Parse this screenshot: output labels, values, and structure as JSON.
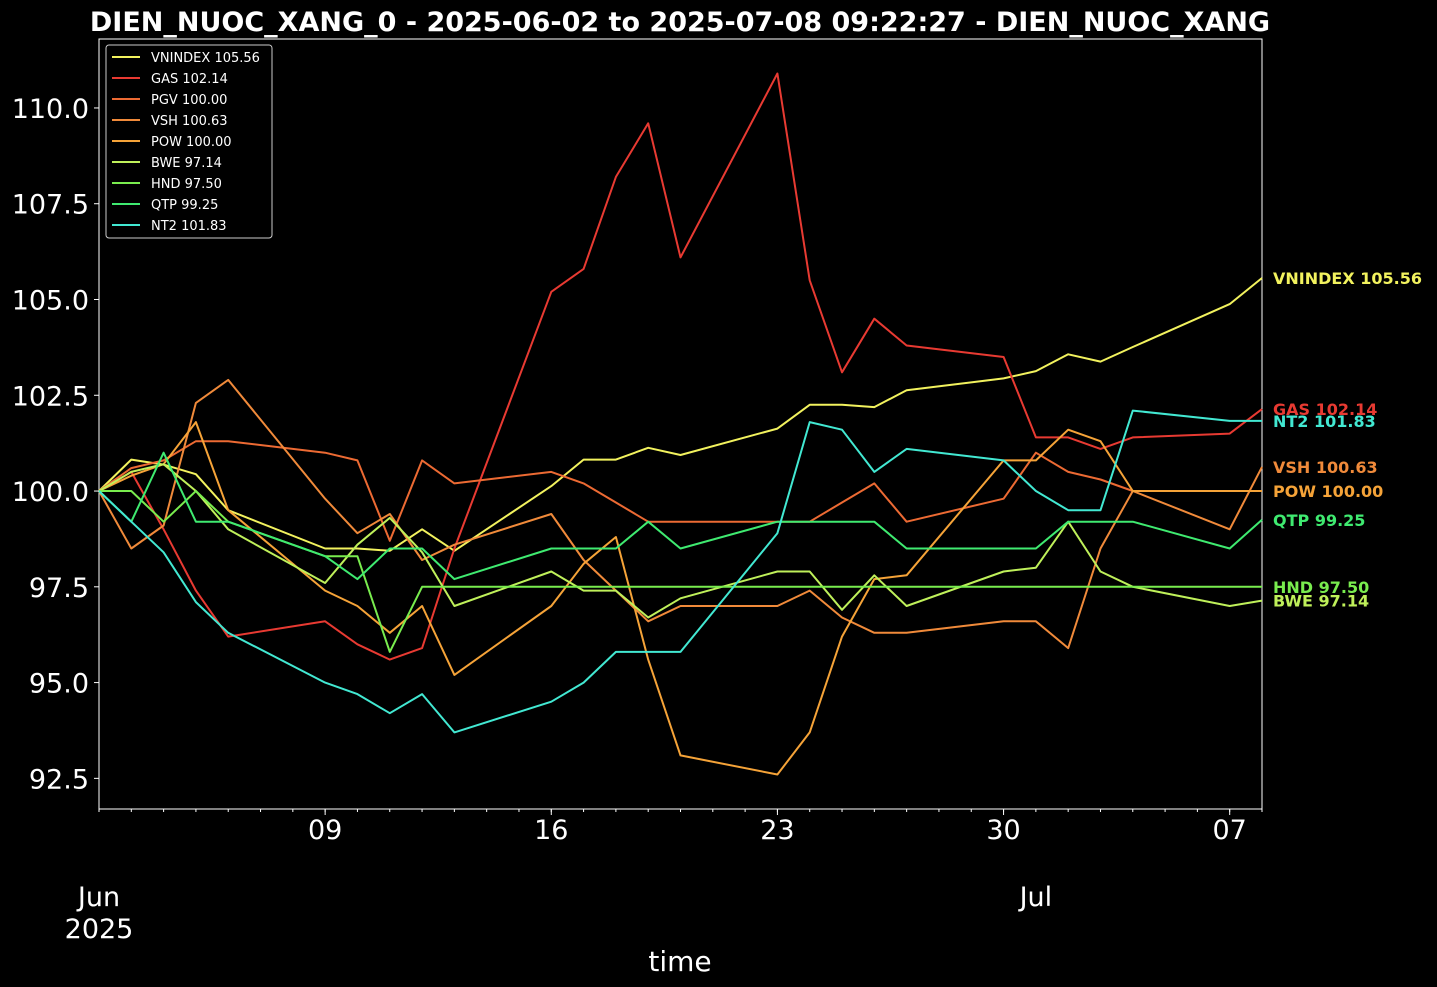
{
  "chart_data": {
    "type": "line",
    "title": "DIEN_NUOC_XANG_0 - 2025-06-02 to 2025-07-08 09:22:27 - DIEN_NUOC_XANG",
    "xlabel": "time",
    "ylabel": "",
    "x_tick_labels": [
      {
        "date": "2025-06-09",
        "label": "09"
      },
      {
        "date": "2025-06-16",
        "label": "16"
      },
      {
        "date": "2025-06-23",
        "label": "23"
      },
      {
        "date": "2025-06-30",
        "label": "30"
      },
      {
        "date": "2025-07-07",
        "label": "07"
      }
    ],
    "x_major_labels": [
      {
        "date": "2025-06-02",
        "line1": "Jun",
        "line2": "2025"
      },
      {
        "date": "2025-07-01",
        "line1": "Jul",
        "line2": ""
      }
    ],
    "y_ticks": [
      92.5,
      95.0,
      97.5,
      100.0,
      102.5,
      105.0,
      107.5,
      110.0
    ],
    "y_tick_labels": [
      "92.5",
      "95.0",
      "97.5",
      "100.0",
      "102.5",
      "105.0",
      "107.5",
      "110.0"
    ],
    "xlim": [
      "2025-06-02",
      "2025-07-08"
    ],
    "ylim": [
      91.7,
      111.8
    ],
    "grid": false,
    "legend_position": "top-left",
    "background": "#000000",
    "x": [
      "2025-06-02",
      "2025-06-03",
      "2025-06-04",
      "2025-06-05",
      "2025-06-06",
      "2025-06-09",
      "2025-06-10",
      "2025-06-11",
      "2025-06-12",
      "2025-06-13",
      "2025-06-16",
      "2025-06-17",
      "2025-06-18",
      "2025-06-19",
      "2025-06-20",
      "2025-06-23",
      "2025-06-24",
      "2025-06-25",
      "2025-06-26",
      "2025-06-27",
      "2025-06-30",
      "2025-07-01",
      "2025-07-02",
      "2025-07-03",
      "2025-07-04",
      "2025-07-07",
      "2025-07-08"
    ],
    "series": [
      {
        "name": "VNINDEX 105.56",
        "end_label": "VNINDEX 105.56",
        "color": "#f2f25e",
        "values": [
          100.0,
          100.82,
          100.69,
          100.44,
          99.5,
          98.5,
          98.5,
          98.44,
          99.0,
          98.44,
          100.13,
          100.82,
          100.82,
          101.13,
          100.94,
          101.63,
          102.25,
          102.25,
          102.19,
          102.63,
          102.94,
          103.13,
          103.57,
          103.38,
          103.76,
          104.88,
          105.56
        ]
      },
      {
        "name": "GAS 102.14",
        "end_label": "GAS 102.14",
        "color": "#e83a32",
        "values": [
          100.0,
          100.5,
          99.0,
          97.4,
          96.2,
          96.6,
          96.0,
          95.6,
          95.9,
          98.5,
          105.2,
          105.8,
          108.2,
          109.6,
          106.1,
          110.9,
          105.5,
          103.1,
          104.5,
          103.8,
          103.5,
          101.4,
          101.4,
          101.1,
          101.4,
          101.5,
          102.14
        ]
      },
      {
        "name": "PGV 100.00",
        "end_label": "",
        "color": "#ec6a33",
        "values": [
          100.0,
          100.6,
          100.8,
          101.3,
          101.3,
          101.0,
          100.8,
          98.7,
          100.8,
          100.2,
          100.5,
          100.2,
          99.7,
          99.2,
          99.2,
          99.2,
          99.2,
          99.7,
          100.2,
          99.2,
          99.8,
          101.0,
          100.5,
          100.3,
          100.0,
          100.0,
          100.0
        ]
      },
      {
        "name": "VSH 100.63",
        "end_label": "VSH 100.63",
        "color": "#f08a3a",
        "values": [
          100.0,
          98.5,
          99.1,
          102.3,
          102.9,
          99.8,
          98.9,
          99.4,
          98.2,
          98.6,
          99.4,
          98.2,
          97.4,
          96.6,
          97.0,
          97.0,
          97.4,
          96.7,
          96.3,
          96.3,
          96.6,
          96.6,
          95.9,
          98.5,
          100.0,
          99.0,
          100.63
        ]
      },
      {
        "name": "POW 100.00",
        "end_label": "POW 100.00",
        "color": "#f5a338",
        "values": [
          100.0,
          100.4,
          100.7,
          101.8,
          99.5,
          97.4,
          97.0,
          96.3,
          97.0,
          95.2,
          97.0,
          98.1,
          98.8,
          95.6,
          93.1,
          92.6,
          93.7,
          96.2,
          97.7,
          97.8,
          100.8,
          100.8,
          101.6,
          101.3,
          100.0,
          100.0,
          100.0
        ]
      },
      {
        "name": "BWE 97.14",
        "end_label": "BWE 97.14",
        "color": "#bff05a",
        "values": [
          100.0,
          100.5,
          100.7,
          100.0,
          99.0,
          97.6,
          98.6,
          99.3,
          98.4,
          97.0,
          97.9,
          97.4,
          97.4,
          96.7,
          97.2,
          97.9,
          97.9,
          96.9,
          97.8,
          97.0,
          97.9,
          98.0,
          99.2,
          97.9,
          97.5,
          97.0,
          97.14
        ]
      },
      {
        "name": "HND 97.50",
        "end_label": "HND 97.50",
        "color": "#79ec4e",
        "values": [
          100.0,
          100.0,
          99.2,
          100.0,
          99.2,
          98.3,
          98.3,
          95.8,
          97.5,
          97.5,
          97.5,
          97.5,
          97.5,
          97.5,
          97.5,
          97.5,
          97.5,
          97.5,
          97.5,
          97.5,
          97.5,
          97.5,
          97.5,
          97.5,
          97.5,
          97.5,
          97.5
        ]
      },
      {
        "name": "QTP 99.25",
        "end_label": "QTP 99.25",
        "color": "#3fea70",
        "values": [
          100.0,
          99.2,
          101.0,
          99.2,
          99.2,
          98.3,
          97.7,
          98.5,
          98.5,
          97.7,
          98.5,
          98.5,
          98.5,
          99.2,
          98.5,
          99.2,
          99.2,
          99.2,
          99.2,
          98.5,
          98.5,
          98.5,
          99.2,
          99.2,
          99.2,
          98.5,
          99.25
        ]
      },
      {
        "name": "NT2 101.83",
        "end_label": "NT2 101.83",
        "color": "#42e8d2",
        "values": [
          100.0,
          99.2,
          98.4,
          97.1,
          96.3,
          95.0,
          94.7,
          94.2,
          94.7,
          93.7,
          94.5,
          95.0,
          95.8,
          95.8,
          95.8,
          98.9,
          101.8,
          101.6,
          100.5,
          101.1,
          100.8,
          100.0,
          99.5,
          99.5,
          102.1,
          101.83,
          101.83
        ]
      }
    ]
  }
}
